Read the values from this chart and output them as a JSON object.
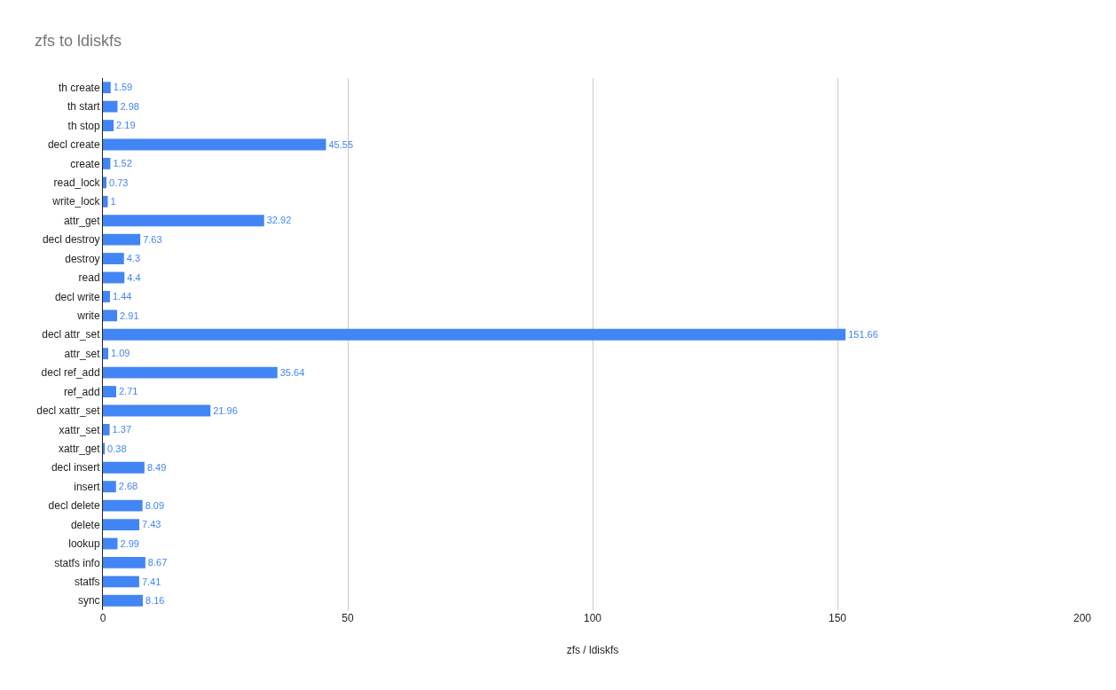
{
  "chart_data": {
    "type": "bar",
    "orientation": "horizontal",
    "title": "zfs to ldiskfs",
    "xlabel": "zfs / ldiskfs",
    "categories": [
      "th create",
      "th start",
      "th stop",
      "decl create",
      "create",
      "read_lock",
      "write_lock",
      "attr_get",
      "decl destroy",
      "destroy",
      "read",
      "decl write",
      "write",
      "decl attr_set",
      "attr_set",
      "decl ref_add",
      "ref_add",
      "decl xattr_set",
      "xattr_set",
      "xattr_get",
      "decl insert",
      "insert",
      "decl delete",
      "delete",
      "lookup",
      "statfs info",
      "statfs",
      "sync"
    ],
    "values": [
      1.59,
      2.98,
      2.19,
      45.55,
      1.52,
      0.73,
      1,
      32.92,
      7.63,
      4.3,
      4.4,
      1.44,
      2.91,
      151.66,
      1.09,
      35.64,
      2.71,
      21.96,
      1.37,
      0.38,
      8.49,
      2.68,
      8.09,
      7.43,
      2.99,
      8.67,
      7.41,
      8.16
    ],
    "color": "#4285f4",
    "xlim": [
      0,
      200
    ],
    "xticks": [
      0,
      50,
      100,
      150,
      200
    ],
    "grid": "x",
    "data_labels": true
  }
}
